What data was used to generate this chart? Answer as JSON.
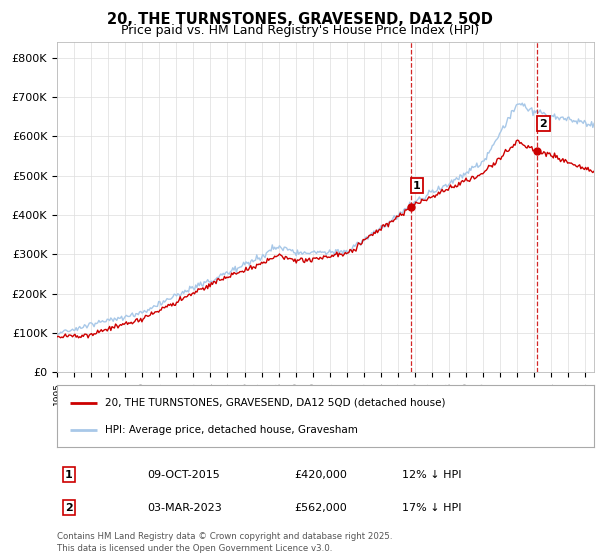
{
  "title": "20, THE TURNSTONES, GRAVESEND, DA12 5QD",
  "subtitle": "Price paid vs. HM Land Registry's House Price Index (HPI)",
  "ylabel_ticks": [
    "£0",
    "£100K",
    "£200K",
    "£300K",
    "£400K",
    "£500K",
    "£600K",
    "£700K",
    "£800K"
  ],
  "ytick_values": [
    0,
    100000,
    200000,
    300000,
    400000,
    500000,
    600000,
    700000,
    800000
  ],
  "ylim": [
    0,
    840000
  ],
  "xlim_start": 1995.0,
  "xlim_end": 2026.5,
  "line_color_hpi": "#a8c8e8",
  "line_color_property": "#cc0000",
  "vline_color": "#cc0000",
  "marker1_year": 2015.77,
  "marker2_year": 2023.17,
  "legend_property": "20, THE TURNSTONES, GRAVESEND, DA12 5QD (detached house)",
  "legend_hpi": "HPI: Average price, detached house, Gravesham",
  "sale1_label": "1",
  "sale1_date": "09-OCT-2015",
  "sale1_price": "£420,000",
  "sale1_hpi": "12% ↓ HPI",
  "sale2_label": "2",
  "sale2_date": "03-MAR-2023",
  "sale2_price": "£562,000",
  "sale2_hpi": "17% ↓ HPI",
  "footer": "Contains HM Land Registry data © Crown copyright and database right 2025.\nThis data is licensed under the Open Government Licence v3.0.",
  "background_color": "#ffffff",
  "grid_color": "#dddddd",
  "title_fontsize": 10.5,
  "subtitle_fontsize": 9
}
